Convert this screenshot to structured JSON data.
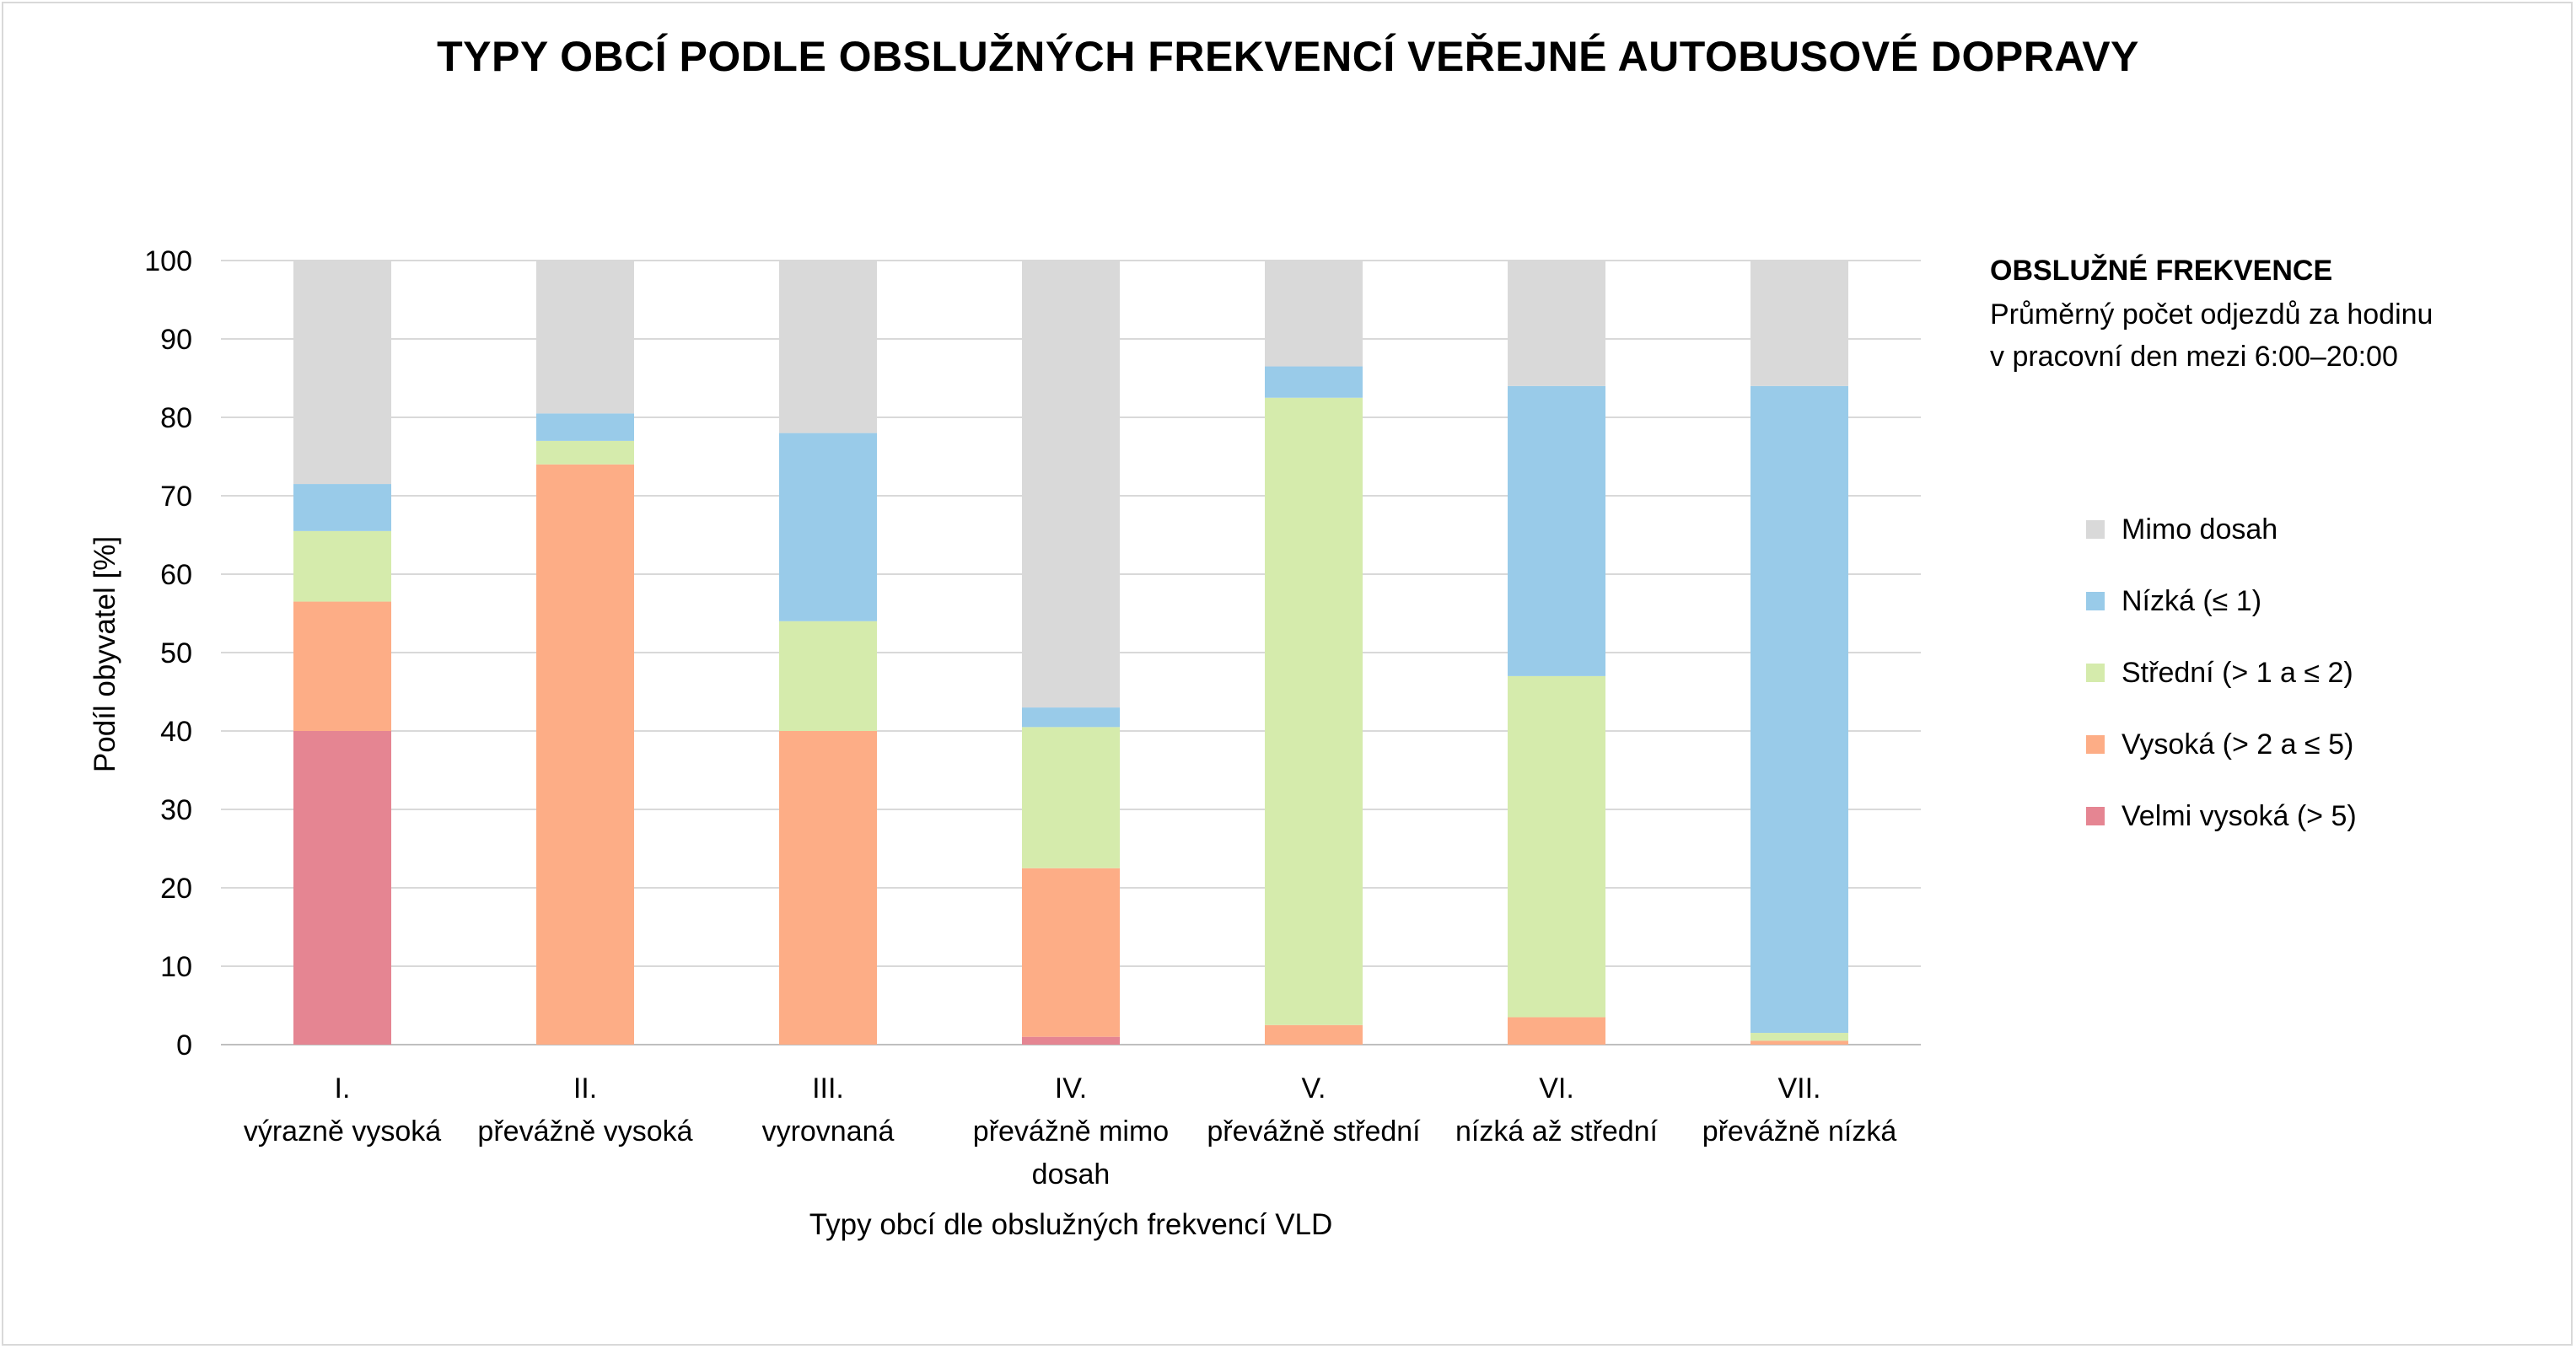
{
  "chart_data": {
    "type": "bar",
    "stacked": true,
    "title": "TYPY OBCÍ PODLE OBSLUŽNÝCH FREKVENCÍ VEŘEJNÉ AUTOBUSOVÉ DOPRAVY",
    "xlabel": "Typy obcí dle obslužných frekvencí VLD",
    "ylabel": "Podíl obyvatel [%]",
    "ylim": [
      0,
      100
    ],
    "yticks": [
      0,
      10,
      20,
      30,
      40,
      50,
      60,
      70,
      80,
      90,
      100
    ],
    "grid": true,
    "legend_position": "right",
    "legend_heading": "OBSLUŽNÉ FREKVENCE",
    "legend_note_1": "Průměrný počet odjezdů za hodinu",
    "legend_note_2": "v pracovní den mezi 6:00–20:00",
    "categories": [
      [
        "I.",
        "výrazně vysoká"
      ],
      [
        "II.",
        "převážně vysoká"
      ],
      [
        "III.",
        "vyrovnaná"
      ],
      [
        "IV.",
        "převážně mimo",
        "dosah"
      ],
      [
        "V.",
        "převážně střední"
      ],
      [
        "VI.",
        "nízká až střední"
      ],
      [
        "VII.",
        "převážně nízká"
      ]
    ],
    "series": [
      {
        "name": "Velmi vysoká (> 5)",
        "color": "#e58592",
        "values": [
          40,
          0,
          0,
          1,
          0,
          0,
          0
        ]
      },
      {
        "name": "Vysoká (> 2 a ≤ 5)",
        "color": "#fdad86",
        "values": [
          16.5,
          74,
          40,
          21.5,
          2.5,
          3.5,
          0.5
        ]
      },
      {
        "name": "Střední (> 1 a ≤ 2)",
        "color": "#d5ebac",
        "values": [
          9,
          3,
          14,
          18,
          80,
          43.5,
          1
        ]
      },
      {
        "name": "Nízká (≤ 1)",
        "color": "#99cbe9",
        "values": [
          6,
          3.5,
          24,
          2.5,
          4,
          37,
          82.5
        ]
      },
      {
        "name": "Mimo dosah",
        "color": "#d9d9d9",
        "values": [
          28.5,
          19.5,
          22,
          57,
          13.5,
          16,
          16
        ]
      }
    ]
  }
}
